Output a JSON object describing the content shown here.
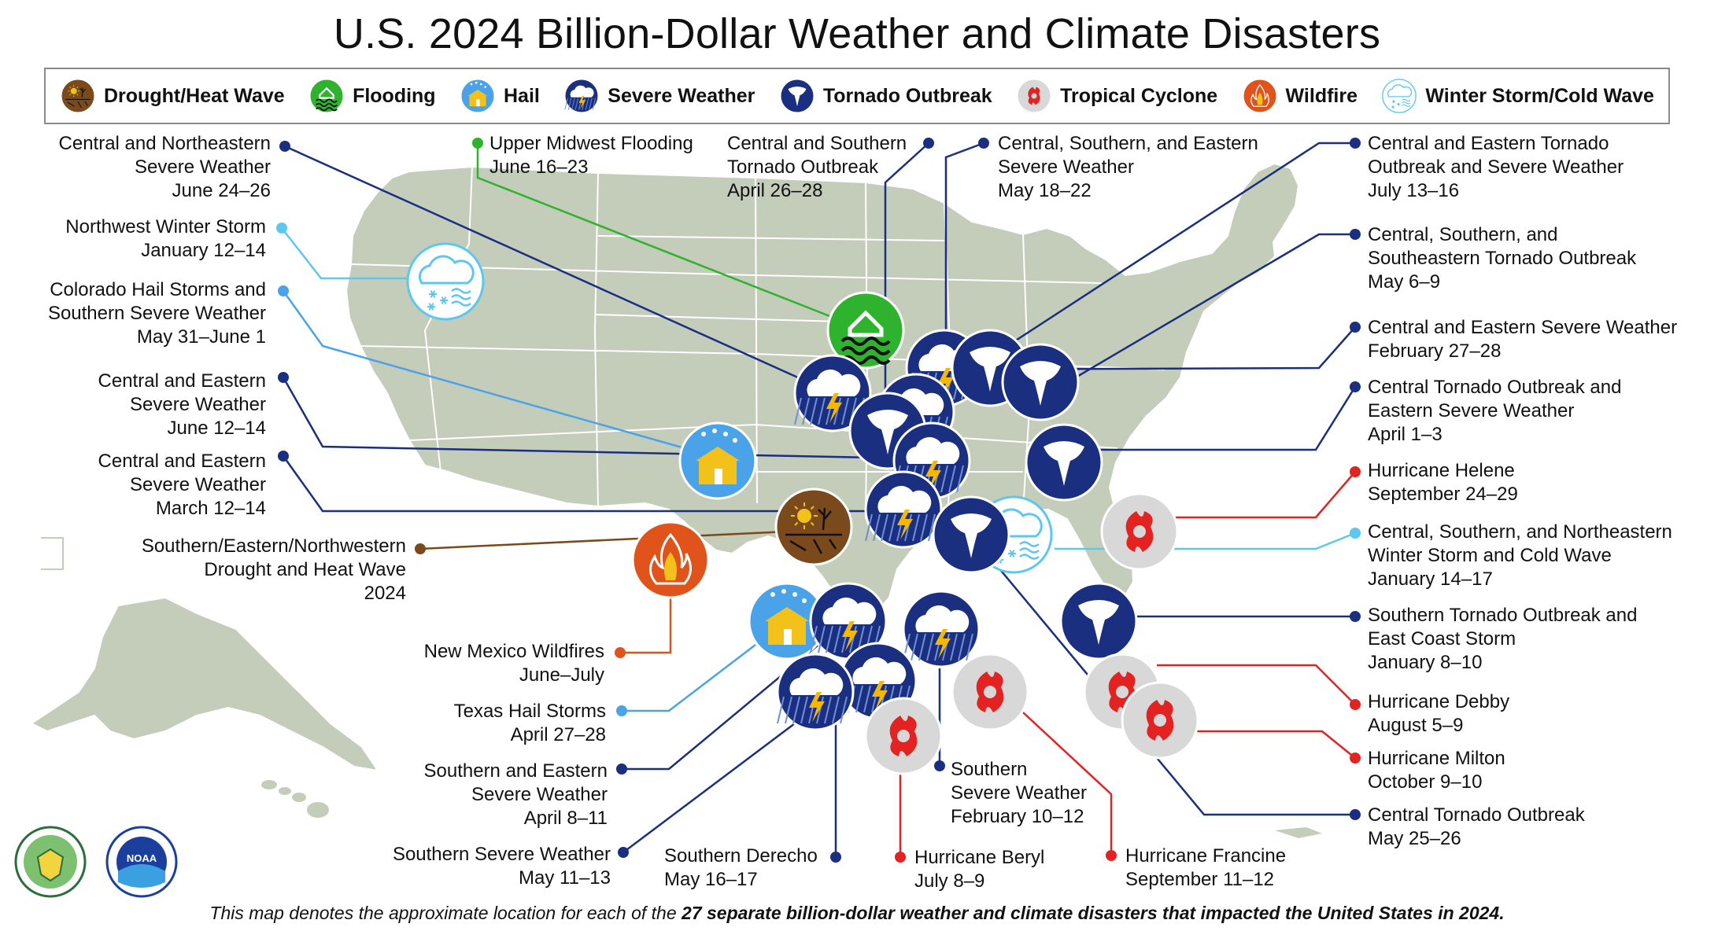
{
  "title": "U.S. 2024 Billion-Dollar Weather and Climate Disasters",
  "legend": [
    {
      "key": "drought",
      "label": "Drought/Heat Wave"
    },
    {
      "key": "flood",
      "label": "Flooding"
    },
    {
      "key": "hail",
      "label": "Hail"
    },
    {
      "key": "severe",
      "label": "Severe Weather"
    },
    {
      "key": "tornado",
      "label": "Tornado Outbreak"
    },
    {
      "key": "tropical",
      "label": "Tropical Cyclone"
    },
    {
      "key": "wildfire",
      "label": "Wildfire"
    },
    {
      "key": "winter",
      "label": "Winter Storm/Cold Wave"
    }
  ],
  "colors": {
    "drought": "#7a4a1c",
    "flood": "#2fb32f",
    "hail": "#4aa3e8",
    "severe": "#1b2f80",
    "tornado": "#1b2f80",
    "tropical": "#e32222",
    "wildfire": "#e0541c",
    "winter": "#5cc8ef",
    "land": "#c4ccba",
    "state_line": "#ffffff"
  },
  "events": [
    {
      "id": "e1",
      "type": "severe",
      "label": "Central and Northeastern\nSevere Weather\nJune 24–26"
    },
    {
      "id": "e2",
      "type": "flood",
      "label": "Upper Midwest Flooding\nJune 16–23"
    },
    {
      "id": "e3",
      "type": "tornado",
      "label": "Central and Southern\nTornado Outbreak\nApril 26–28"
    },
    {
      "id": "e4",
      "type": "severe",
      "label": "Central, Southern, and Eastern\nSevere Weather\nMay 18–22"
    },
    {
      "id": "e5",
      "type": "tornado",
      "label": "Central and Eastern Tornado\nOutbreak and Severe Weather\nJuly 13–16"
    },
    {
      "id": "e6",
      "type": "winter",
      "label": "Northwest Winter Storm\nJanuary 12–14"
    },
    {
      "id": "e7",
      "type": "tornado",
      "label": "Central, Southern, and\nSoutheastern Tornado Outbreak\nMay 6–9"
    },
    {
      "id": "e8",
      "type": "hail",
      "label": "Colorado Hail Storms and\nSouthern Severe Weather\nMay 31–June 1"
    },
    {
      "id": "e9",
      "type": "severe",
      "label": "Central and Eastern Severe Weather\nFebruary 27–28"
    },
    {
      "id": "e10",
      "type": "severe",
      "label": "Central and Eastern\nSevere Weather\nJune 12–14"
    },
    {
      "id": "e11",
      "type": "tornado",
      "label": "Central Tornado Outbreak and\nEastern Severe Weather\nApril 1–3"
    },
    {
      "id": "e12",
      "type": "severe",
      "label": "Central and Eastern\nSevere Weather\nMarch 12–14"
    },
    {
      "id": "e13",
      "type": "tropical",
      "label": "Hurricane Helene\nSeptember 24–29"
    },
    {
      "id": "e14",
      "type": "drought",
      "label": "Southern/Eastern/Northwestern\nDrought and Heat Wave\n2024"
    },
    {
      "id": "e15",
      "type": "winter",
      "label": "Central, Southern, and Northeastern\nWinter Storm and Cold Wave\nJanuary 14–17"
    },
    {
      "id": "e16",
      "type": "tornado",
      "label": "Southern Tornado Outbreak and\nEast Coast Storm\nJanuary 8–10"
    },
    {
      "id": "e17",
      "type": "wildfire",
      "label": "New Mexico Wildfires\nJune–July"
    },
    {
      "id": "e18",
      "type": "tropical",
      "label": "Hurricane Debby\nAugust 5–9"
    },
    {
      "id": "e19",
      "type": "hail",
      "label": "Texas Hail Storms\nApril 27–28"
    },
    {
      "id": "e20",
      "type": "tropical",
      "label": "Hurricane Milton\nOctober 9–10"
    },
    {
      "id": "e21",
      "type": "severe",
      "label": "Southern and Eastern\nSevere Weather\nApril 8–11"
    },
    {
      "id": "e22",
      "type": "tornado",
      "label": "Central Tornado Outbreak\nMay 25–26"
    },
    {
      "id": "e23",
      "type": "severe",
      "label": "Southern\nSevere Weather\nFebruary 10–12"
    },
    {
      "id": "e24",
      "type": "severe",
      "label": "Southern Severe Weather\nMay 11–13"
    },
    {
      "id": "e25",
      "type": "severe",
      "label": "Southern Derecho\nMay 16–17"
    },
    {
      "id": "e26",
      "type": "tropical",
      "label": "Hurricane Beryl\nJuly 8–9"
    },
    {
      "id": "e27",
      "type": "tropical",
      "label": "Hurricane Francine\nSeptember 11–12"
    }
  ],
  "footer": {
    "pre": "This map denotes the approximate location for each of the ",
    "bold": "27 separate billion-dollar weather and climate disasters that impacted the United States in 2024."
  },
  "seals": [
    {
      "name": "commerce-seal",
      "alt": "Department of Commerce seal"
    },
    {
      "name": "noaa-logo",
      "text": "NOAA"
    }
  ]
}
